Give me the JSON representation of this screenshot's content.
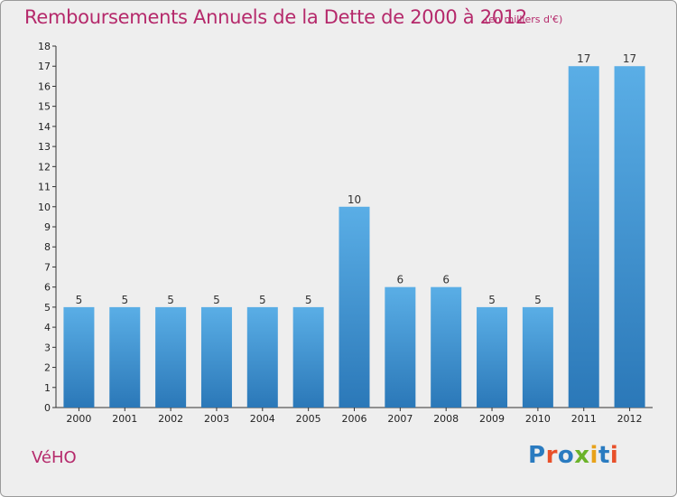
{
  "header": {
    "title": "Remboursements Annuels de la Dette de 2000 à 2012",
    "unit": "(en milliers d'€)"
  },
  "footer": {
    "commune": "VéHO",
    "logo_text": "Proxiti",
    "logo_colors": [
      "#2a7bc0",
      "#e8502a",
      "#2a7bc0",
      "#6bb32a",
      "#e8a21a",
      "#2a7bc0",
      "#e8502a"
    ]
  },
  "colors": {
    "title": "#b5296b",
    "bar_top": "#5aaee6",
    "bar_bottom": "#2b78b8",
    "background": "#eeeeee"
  },
  "chart_data": {
    "type": "bar",
    "categories": [
      "2000",
      "2001",
      "2002",
      "2003",
      "2004",
      "2005",
      "2006",
      "2007",
      "2008",
      "2009",
      "2010",
      "2011",
      "2012"
    ],
    "values": [
      5,
      5,
      5,
      5,
      5,
      5,
      10,
      6,
      6,
      5,
      5,
      17,
      17
    ],
    "data_labels": [
      "5",
      "5",
      "5",
      "5",
      "5",
      "5",
      "10",
      "6",
      "6",
      "5",
      "5",
      "17",
      "17"
    ],
    "ylim": [
      0,
      18
    ],
    "yticks": [
      0,
      1,
      2,
      3,
      4,
      5,
      6,
      7,
      8,
      9,
      10,
      11,
      12,
      13,
      14,
      15,
      16,
      17,
      18
    ],
    "grid": false,
    "legend": "none"
  }
}
